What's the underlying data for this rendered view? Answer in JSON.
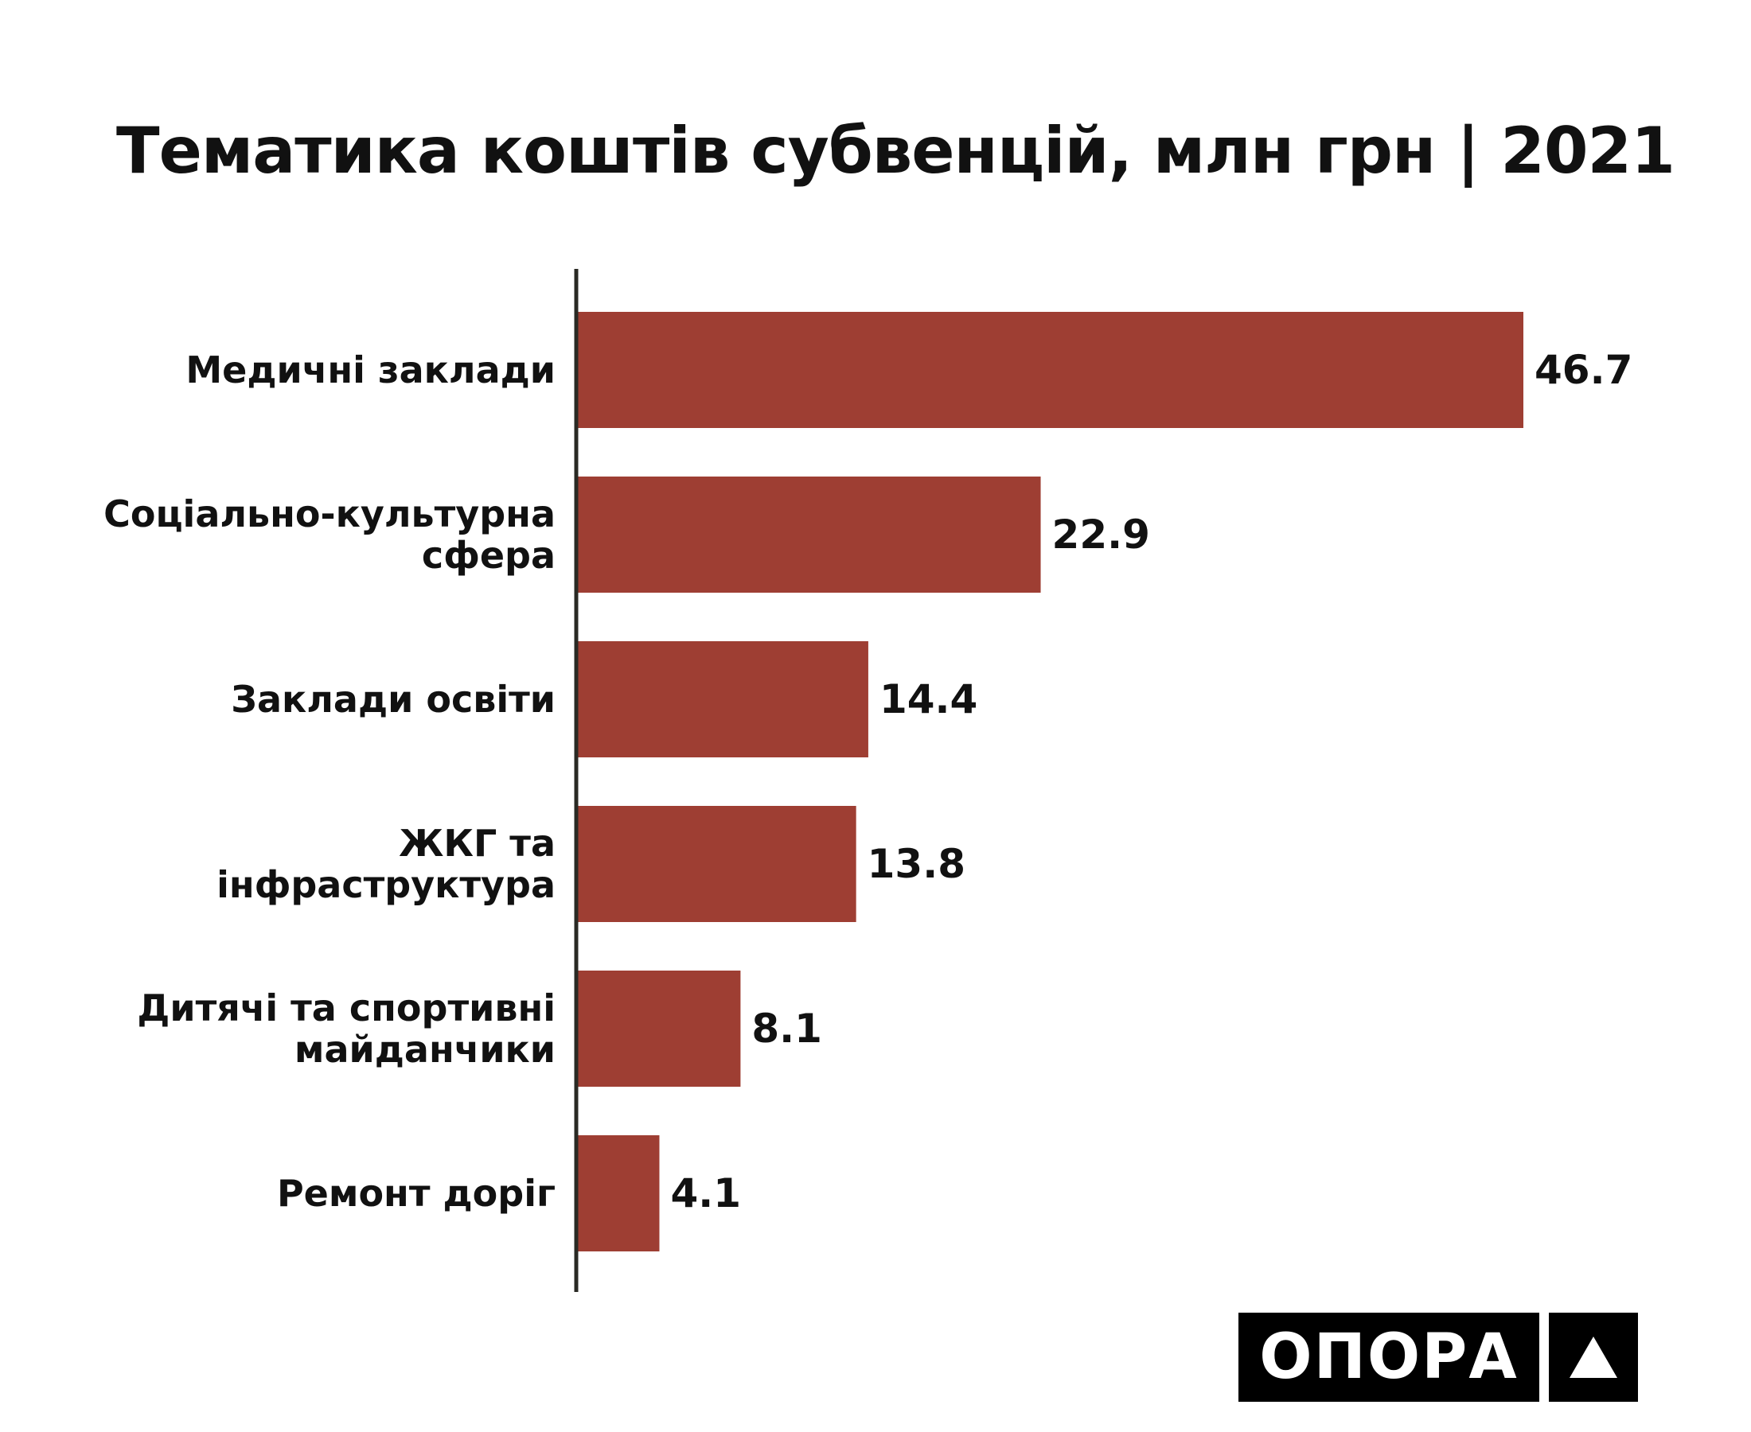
{
  "chart_data": {
    "type": "bar",
    "orientation": "horizontal",
    "title": "Тематика коштів субвенцій, млн грн | 2021",
    "categories": [
      "Медичні заклади",
      "Соціально-культурна сфера",
      "Заклади освіти",
      "ЖКГ та інфраструктура",
      "Дитячі та спортивні майданчики",
      "Ремонт доріг"
    ],
    "category_lines": [
      [
        "Медичні заклади"
      ],
      [
        "Соціально-культурна",
        "сфера"
      ],
      [
        "Заклади освіти"
      ],
      [
        "ЖКГ та",
        "інфраструктура"
      ],
      [
        "Дитячі та спортивні",
        "майданчики"
      ],
      [
        "Ремонт доріг"
      ]
    ],
    "values": [
      46.7,
      22.9,
      14.4,
      13.8,
      8.1,
      4.1
    ],
    "value_labels": [
      "46.7",
      "22.9",
      "14.4",
      "13.8",
      "8.1",
      "4.1"
    ],
    "xlim": [
      0,
      46.7
    ],
    "grid": false,
    "legend": "none",
    "bar_color": "#9e3e33",
    "axis_color": "#2a2a24"
  },
  "logo": {
    "text": "ОПОРА",
    "icon": "triangle-icon",
    "background": "#000000",
    "foreground": "#ffffff"
  }
}
